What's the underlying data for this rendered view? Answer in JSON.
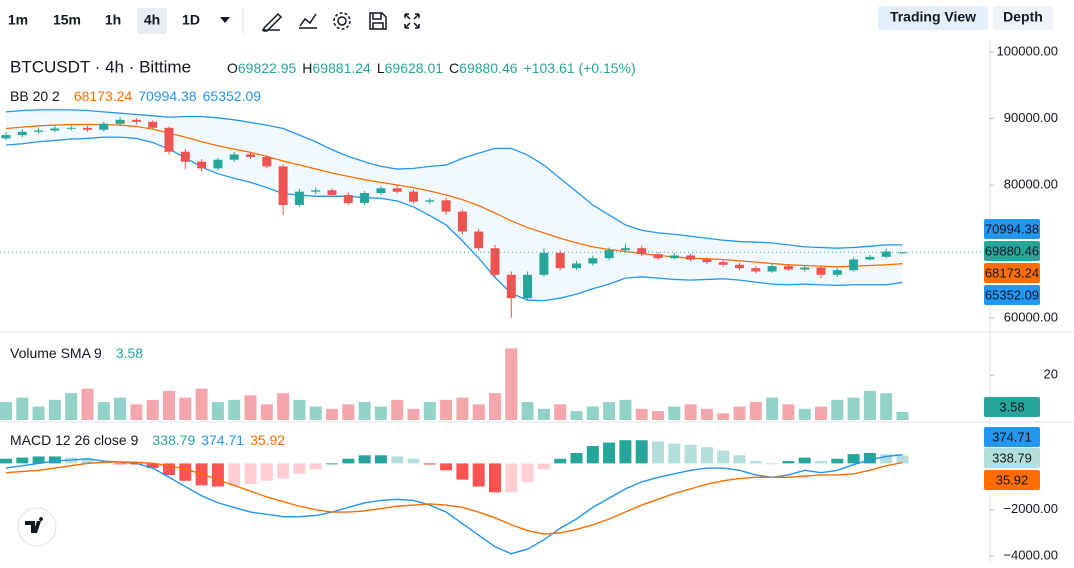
{
  "toolbar": {
    "intervals": [
      "1m",
      "15m",
      "1h",
      "4h",
      "1D"
    ],
    "active": 3,
    "views": [
      "Trading View",
      "Depth"
    ]
  },
  "chart_data": [
    {
      "type": "candlestick",
      "title": "BTCUSDT · 4h · Bittime",
      "ohlc_labels": [
        "O",
        "H",
        "L",
        "C"
      ],
      "change": "+103.61 (+0.15%)",
      "up_color": "#26a69a",
      "down_color": "#ef5350",
      "open": [
        87000,
        87500,
        88000,
        88200,
        88500,
        88600,
        88300,
        89200,
        89800,
        89500,
        88600,
        85000,
        83500,
        82500,
        83800,
        84600,
        84200,
        82800,
        77000,
        79000,
        79200,
        78500,
        77300,
        78800,
        79500,
        79000,
        77500,
        77700,
        76000,
        73000,
        70500,
        66500,
        63000,
        66500,
        69800,
        67500,
        68200,
        69000,
        70200,
        70500,
        69600,
        69000,
        69400,
        68800,
        68400,
        68000,
        67500,
        67000,
        67800,
        67300,
        67600,
        66500,
        67200,
        68800,
        69200,
        69822.95
      ],
      "high": [
        88000,
        88400,
        88600,
        88900,
        89000,
        88900,
        89500,
        90200,
        90100,
        89700,
        88800,
        85400,
        83900,
        84100,
        85000,
        84900,
        84500,
        83100,
        79400,
        79600,
        79500,
        78900,
        79100,
        79800,
        79900,
        79300,
        78000,
        78100,
        76300,
        73400,
        71000,
        67000,
        67000,
        70500,
        70200,
        68600,
        69400,
        70600,
        71200,
        70900,
        69900,
        69800,
        69700,
        69100,
        68700,
        68300,
        67800,
        68100,
        68100,
        67900,
        67900,
        67500,
        69100,
        69500,
        70400,
        69881.24
      ],
      "low": [
        86700,
        87200,
        87700,
        87900,
        88200,
        88000,
        88000,
        88900,
        89100,
        88300,
        84600,
        82400,
        82000,
        82200,
        83500,
        83900,
        82500,
        75500,
        76700,
        78600,
        78200,
        77000,
        77000,
        78500,
        78700,
        77200,
        77200,
        75500,
        72600,
        70100,
        66000,
        60000,
        62700,
        66200,
        67200,
        67200,
        67900,
        68700,
        69900,
        69300,
        68700,
        68800,
        68500,
        68100,
        67700,
        67200,
        66700,
        66800,
        67100,
        67000,
        66000,
        66200,
        67000,
        68600,
        69000,
        69628.01
      ],
      "close": [
        87500,
        88000,
        88200,
        88500,
        88600,
        88300,
        89200,
        89800,
        89500,
        88600,
        85000,
        83500,
        82500,
        83800,
        84600,
        84200,
        82800,
        77000,
        79000,
        79200,
        78500,
        77300,
        78800,
        79500,
        79000,
        77500,
        77700,
        76000,
        73000,
        70500,
        66500,
        63000,
        66500,
        69800,
        67500,
        68200,
        69000,
        70200,
        70500,
        69600,
        69000,
        69400,
        68800,
        68400,
        68000,
        67500,
        67000,
        67800,
        67300,
        67600,
        66500,
        67200,
        68800,
        69200,
        70000,
        69880.46
      ],
      "overlay": {
        "name": "BB 20 2",
        "fill": "#2196f3",
        "series": [
          {
            "color": "#ff6d00",
            "values": [
              88500,
              88700,
              88900,
              89000,
              89100,
              89100,
              89100,
              89000,
              88800,
              88400,
              87800,
              87200,
              86500,
              85900,
              85400,
              84900,
              84300,
              83600,
              83000,
              82400,
              81800,
              81300,
              80800,
              80400,
              80000,
              79600,
              79100,
              78500,
              77800,
              76900,
              75800,
              74600,
              73600,
              72800,
              72000,
              71300,
              70700,
              70300,
              70000,
              69700,
              69400,
              69200,
              69000,
              68900,
              68800,
              68600,
              68400,
              68200,
              68000,
              67900,
              67800,
              67700,
              67800,
              67900,
              68000,
              68173.24
            ]
          },
          {
            "color": "#2196f3",
            "values": [
              91000,
              91200,
              91300,
              91300,
              91300,
              91200,
              91000,
              90800,
              90600,
              90400,
              90200,
              90300,
              90300,
              90100,
              89800,
              89400,
              89000,
              88500,
              87500,
              86500,
              85300,
              84300,
              83500,
              82800,
              82400,
              82500,
              82800,
              83000,
              84000,
              84800,
              85500,
              85500,
              84500,
              83000,
              81000,
              79000,
              77000,
              75500,
              74000,
              73200,
              72800,
              72600,
              72300,
              72000,
              71700,
              71500,
              71400,
              71300,
              71000,
              70700,
              70600,
              70500,
              70600,
              70800,
              71000,
              70994.38
            ]
          },
          {
            "color": "#2196f3",
            "values": [
              86000,
              86200,
              86500,
              86700,
              86900,
              87000,
              87200,
              87200,
              87000,
              86400,
              85400,
              84100,
              82700,
              81700,
              81000,
              80400,
              79600,
              78700,
              78500,
              78300,
              78300,
              78300,
              78100,
              78000,
              77600,
              76700,
              75400,
              74000,
              71600,
              69000,
              66100,
              63700,
              62700,
              62600,
              63000,
              63600,
              64400,
              65100,
              66000,
              66200,
              66000,
              65800,
              65700,
              65800,
              65900,
              65700,
              65400,
              65100,
              65000,
              65100,
              65000,
              64900,
              65000,
              65000,
              65000,
              65352.09
            ]
          }
        ]
      },
      "ylim": [
        57900,
        101800
      ],
      "yticks": [
        {
          "value": 100000,
          "label": "100000.00"
        },
        {
          "value": 90000,
          "label": "90000.00"
        },
        {
          "value": 80000,
          "label": "80000.00"
        },
        {
          "value": 60000,
          "label": "60000.00"
        }
      ]
    },
    {
      "type": "bar",
      "title": "Volume SMA 9",
      "up_color": "#92d2c9",
      "down_color": "#f5a6ad",
      "label_color": "#26a69a",
      "values": [
        8,
        10,
        6,
        9,
        12,
        14,
        8,
        10,
        7,
        9,
        13,
        10,
        14,
        8,
        9,
        11,
        7,
        12,
        9,
        6,
        5,
        7,
        8,
        6,
        9,
        5,
        8,
        9,
        10,
        7,
        12,
        32,
        8,
        5,
        7,
        4,
        6,
        8,
        9,
        5,
        4,
        6,
        7,
        5,
        3,
        6,
        8,
        10,
        7,
        5,
        6,
        9,
        10,
        13,
        12,
        3.58
      ],
      "ylim": [
        0,
        38
      ],
      "yticks": [
        20
      ]
    },
    {
      "type": "macd",
      "title": "MACD 12 26 close 9",
      "histogram": {
        "color": "#26a69a",
        "colors": [
          "#26a69a",
          "#b2dfdb",
          "#ffcdd2",
          "#ff5252"
        ],
        "values": [
          200,
          250,
          300,
          300,
          250,
          200,
          50,
          -10,
          -50,
          -200,
          -500,
          -750,
          -950,
          -1000,
          -950,
          -900,
          -750,
          -650,
          -450,
          -250,
          0,
          200,
          350,
          350,
          300,
          200,
          -50,
          -300,
          -700,
          -1000,
          -1250,
          -1250,
          -800,
          -250,
          200,
          450,
          750,
          900,
          1000,
          1000,
          950,
          850,
          800,
          700,
          550,
          350,
          100,
          0,
          100,
          250,
          100,
          200,
          400,
          450,
          400,
          338.79
        ]
      },
      "series": [
        {
          "color": "#2196f3",
          "values": [
            -200,
            -100,
            0,
            100,
            150,
            200,
            100,
            50,
            0,
            -200,
            -600,
            -1000,
            -1400,
            -1700,
            -1900,
            -2100,
            -2200,
            -2300,
            -2300,
            -2250,
            -2100,
            -1900,
            -1700,
            -1600,
            -1550,
            -1600,
            -1800,
            -2100,
            -2600,
            -3100,
            -3600,
            -3900,
            -3700,
            -3300,
            -2800,
            -2400,
            -1900,
            -1500,
            -1100,
            -800,
            -600,
            -450,
            -300,
            -200,
            -200,
            -300,
            -500,
            -600,
            -500,
            -300,
            -400,
            -300,
            -50,
            150,
            300,
            374.71
          ]
        },
        {
          "color": "#ff6d00",
          "values": [
            -400,
            -350,
            -300,
            -200,
            -100,
            0,
            50,
            60,
            50,
            0,
            -100,
            -250,
            -450,
            -700,
            -950,
            -1200,
            -1450,
            -1650,
            -1850,
            -2000,
            -2100,
            -2100,
            -2050,
            -1950,
            -1850,
            -1800,
            -1750,
            -1800,
            -1900,
            -2100,
            -2350,
            -2650,
            -2900,
            -3050,
            -3000,
            -2850,
            -2650,
            -2400,
            -2100,
            -1800,
            -1550,
            -1300,
            -1100,
            -900,
            -750,
            -650,
            -600,
            -600,
            -600,
            -550,
            -500,
            -500,
            -450,
            -300,
            -100,
            35.92
          ]
        }
      ],
      "ylim": [
        -4300,
        1700
      ],
      "yticks": [
        {
          "value": -2000,
          "label": "−2000.00"
        },
        {
          "value": -4000,
          "label": "−4000.00"
        }
      ]
    }
  ]
}
